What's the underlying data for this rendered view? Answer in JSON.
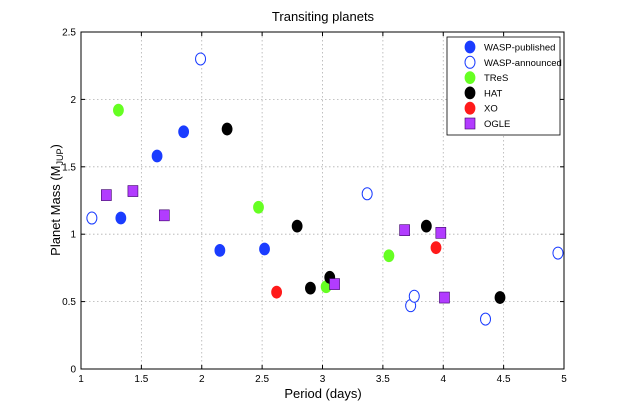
{
  "chart_data": {
    "type": "scatter",
    "title": "Transiting planets",
    "xlabel": "Period (days)",
    "ylabel_main": "Planet Mass (M",
    "ylabel_sub": "JUP",
    "ylabel_close": ")",
    "xlim": [
      1,
      5
    ],
    "ylim": [
      0,
      2.5
    ],
    "xticks": [
      1,
      1.5,
      2,
      2.5,
      3,
      3.5,
      4,
      4.5,
      5
    ],
    "yticks": [
      0,
      0.5,
      1,
      1.5,
      2,
      2.5
    ],
    "xtick_labels": [
      "1",
      "1.5",
      "2",
      "2.5",
      "3",
      "3.5",
      "4",
      "4.5",
      "5"
    ],
    "ytick_labels": [
      "0",
      "0.5",
      "1",
      "1.5",
      "2",
      "2.5"
    ],
    "grid": true,
    "legend_position": "top-right",
    "series": [
      {
        "name": "WASP-published",
        "marker": "circle",
        "filled": true,
        "color": "#1a3cff",
        "points": [
          [
            1.33,
            1.12
          ],
          [
            1.63,
            1.58
          ],
          [
            1.85,
            1.76
          ],
          [
            2.15,
            0.88
          ],
          [
            2.52,
            0.89
          ]
        ]
      },
      {
        "name": "WASP-announced",
        "marker": "circle",
        "filled": false,
        "color": "#1a3cff",
        "points": [
          [
            1.09,
            1.12
          ],
          [
            1.99,
            2.3
          ],
          [
            3.37,
            1.3
          ],
          [
            3.73,
            0.47
          ],
          [
            3.76,
            0.54
          ],
          [
            4.35,
            0.37
          ],
          [
            4.95,
            0.86
          ]
        ]
      },
      {
        "name": "TReS",
        "marker": "circle",
        "filled": true,
        "color": "#66ff22",
        "points": [
          [
            1.31,
            1.92
          ],
          [
            2.47,
            1.2
          ],
          [
            3.03,
            0.61
          ],
          [
            3.55,
            0.84
          ]
        ]
      },
      {
        "name": "HAT",
        "marker": "circle",
        "filled": true,
        "color": "#000000",
        "points": [
          [
            2.21,
            1.78
          ],
          [
            2.79,
            1.06
          ],
          [
            2.9,
            0.6
          ],
          [
            3.06,
            0.68
          ],
          [
            3.86,
            1.06
          ],
          [
            4.47,
            0.53
          ]
        ]
      },
      {
        "name": "XO",
        "marker": "circle",
        "filled": true,
        "color": "#ff1a1a",
        "points": [
          [
            2.62,
            0.57
          ],
          [
            3.94,
            0.9
          ]
        ]
      },
      {
        "name": "OGLE",
        "marker": "square",
        "filled": true,
        "color": "#b23cff",
        "points": [
          [
            1.21,
            1.29
          ],
          [
            1.43,
            1.32
          ],
          [
            1.69,
            1.14
          ],
          [
            3.1,
            0.63
          ],
          [
            3.68,
            1.03
          ],
          [
            3.98,
            1.01
          ],
          [
            4.01,
            0.53
          ]
        ]
      }
    ]
  }
}
